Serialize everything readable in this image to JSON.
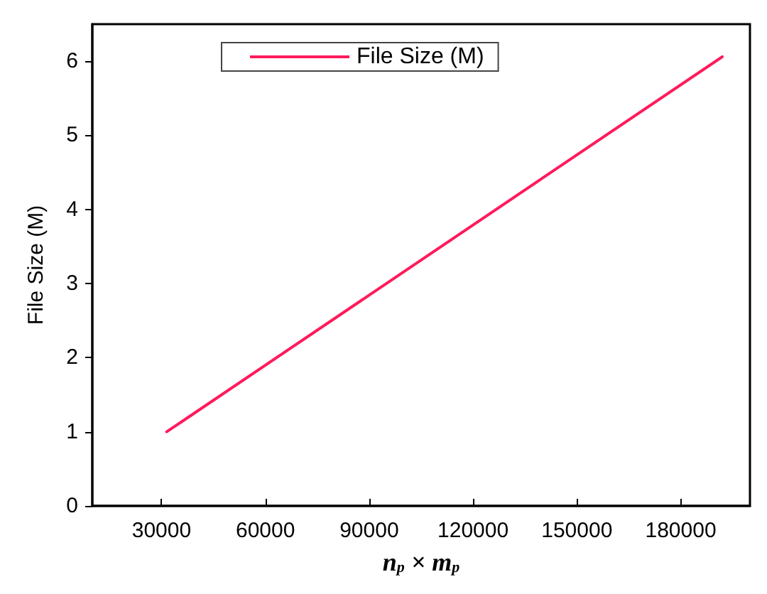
{
  "chart_data": {
    "type": "line",
    "xlabel": "n$_{p}$ × m$_{p}$",
    "ylabel": "File Size (M)",
    "x": [
      31500,
      192000
    ],
    "series": [
      {
        "name": "File Size (M)",
        "color": "#ff1a5c",
        "values": [
          1.0,
          6.06
        ]
      }
    ],
    "xlim": [
      10000,
      200000
    ],
    "xticks": [
      30000,
      60000,
      90000,
      120000,
      150000,
      180000
    ],
    "ylim": [
      0,
      6.5
    ],
    "yticks": [
      0,
      1,
      2,
      3,
      4,
      5,
      6
    ],
    "grid": false,
    "legend": "top",
    "marker": "none",
    "line_style": "solid"
  }
}
